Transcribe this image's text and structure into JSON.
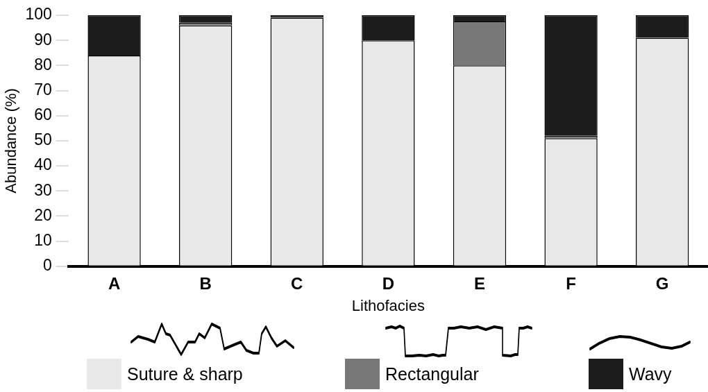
{
  "chart_data": {
    "type": "bar",
    "stacked": true,
    "xlabel": "Lithofacies",
    "ylabel": "Abundance (%)",
    "categories": [
      "A",
      "B",
      "C",
      "D",
      "E",
      "F",
      "G"
    ],
    "series": [
      {
        "name": "Suture & sharp",
        "color": "#e8e8e8",
        "values": [
          84,
          96,
          99,
          90,
          80,
          51,
          91
        ]
      },
      {
        "name": "Rectangular",
        "color": "#787878",
        "values": [
          null,
          1,
          null,
          null,
          17.5,
          1,
          null
        ]
      },
      {
        "name": "Wavy",
        "color": "#1c1c1c",
        "values": [
          16,
          3,
          1,
          10,
          2.5,
          48,
          9
        ]
      }
    ],
    "ylim": [
      0,
      100
    ],
    "yticks": [
      0,
      10,
      20,
      30,
      40,
      50,
      60,
      70,
      80,
      90,
      100
    ],
    "grid": false,
    "legend": "bottom"
  }
}
